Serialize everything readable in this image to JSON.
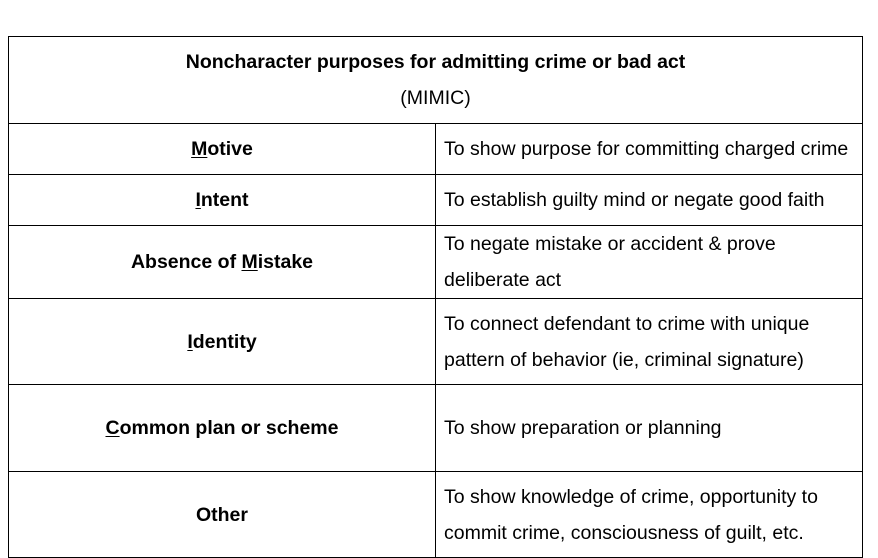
{
  "table": {
    "title": "Noncharacter purposes for admitting crime or bad act",
    "subtitle": "(MIMIC)",
    "rows": [
      {
        "term_underlined": "M",
        "term_rest_before": "",
        "term_rest_after": "otive",
        "description": "To show purpose for committing charged crime"
      },
      {
        "term_underlined": "I",
        "term_rest_before": "",
        "term_rest_after": "ntent",
        "description": "To establish guilty mind or negate good faith"
      },
      {
        "term_underlined": "M",
        "term_rest_before": "Absence of ",
        "term_rest_after": "istake",
        "description": "To negate mistake or accident & prove deliberate act"
      },
      {
        "term_underlined": "I",
        "term_rest_before": "",
        "term_rest_after": "dentity",
        "description": "To connect defendant to crime with unique pattern of behavior (ie, criminal signature)"
      },
      {
        "term_underlined": "C",
        "term_rest_before": "",
        "term_rest_after": "ommon plan or scheme",
        "description": "To show preparation or planning"
      },
      {
        "term_underlined": "",
        "term_rest_before": "Other",
        "term_rest_after": "",
        "description": "To show knowledge of crime, opportunity to commit crime, consciousness of guilt, etc."
      }
    ]
  }
}
